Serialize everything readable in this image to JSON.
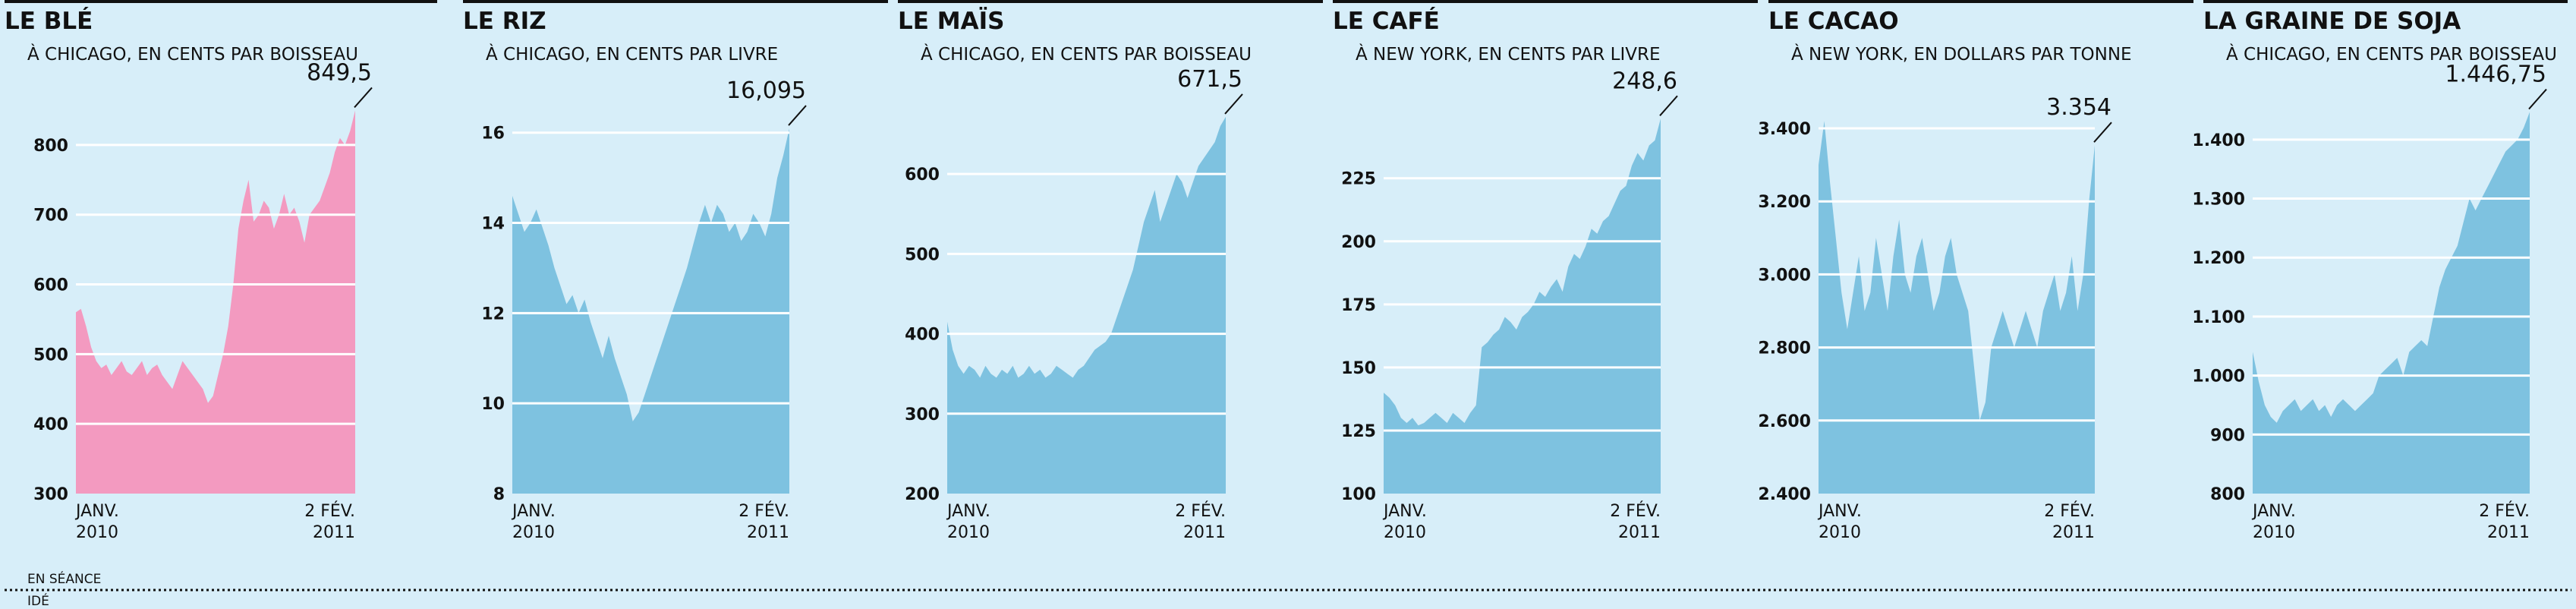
{
  "colors": {
    "background": "#d7eef9",
    "pink": "#f39ac0",
    "blue": "#7ec2e0",
    "grid": "#ffffff",
    "text": "#111111"
  },
  "footer": {
    "label1": "EN SÉANCE",
    "label2": "IDÉ"
  },
  "chart_data": [
    {
      "type": "area",
      "title": "LE BLÉ",
      "subtitle": "À CHICAGO, EN CENTS PAR BOISSEAU",
      "color": "#f39ac0",
      "ylim": [
        300,
        850
      ],
      "yticks": [
        {
          "v": 300,
          "label": "300"
        },
        {
          "v": 400,
          "label": "400"
        },
        {
          "v": 500,
          "label": "500"
        },
        {
          "v": 600,
          "label": "600"
        },
        {
          "v": 700,
          "label": "700"
        },
        {
          "v": 800,
          "label": "800"
        }
      ],
      "x_start_label": [
        "JANV.",
        "2010"
      ],
      "x_end_label": [
        "2 FÉV.",
        "2011"
      ],
      "last_label": "849,5",
      "values": [
        560,
        565,
        540,
        510,
        490,
        480,
        485,
        470,
        480,
        490,
        475,
        470,
        480,
        490,
        470,
        480,
        485,
        470,
        460,
        450,
        470,
        490,
        480,
        470,
        460,
        450,
        430,
        440,
        470,
        500,
        540,
        600,
        680,
        720,
        750,
        690,
        700,
        720,
        710,
        680,
        700,
        730,
        700,
        710,
        690,
        660,
        700,
        710,
        720,
        740,
        760,
        790,
        810,
        800,
        820,
        849.5
      ]
    },
    {
      "type": "area",
      "title": "LE RIZ",
      "subtitle": "À CHICAGO, EN CENTS PAR LIVRE",
      "color": "#7ec2e0",
      "ylim": [
        8,
        16.5
      ],
      "yticks": [
        {
          "v": 8,
          "label": "8"
        },
        {
          "v": 10,
          "label": "10"
        },
        {
          "v": 12,
          "label": "12"
        },
        {
          "v": 14,
          "label": "14"
        },
        {
          "v": 16,
          "label": "16"
        }
      ],
      "x_start_label": [
        "JANV.",
        "2010"
      ],
      "x_end_label": [
        "2 FÉV.",
        "2011"
      ],
      "last_label": "16,095",
      "values": [
        14.6,
        14.2,
        13.8,
        14.0,
        14.3,
        13.9,
        13.5,
        13.0,
        12.6,
        12.2,
        12.4,
        12.0,
        12.3,
        11.8,
        11.4,
        11.0,
        11.5,
        11.0,
        10.6,
        10.2,
        9.6,
        9.8,
        10.2,
        10.6,
        11.0,
        11.4,
        11.8,
        12.2,
        12.6,
        13.0,
        13.5,
        14.0,
        14.4,
        14.0,
        14.4,
        14.2,
        13.8,
        14.0,
        13.6,
        13.8,
        14.2,
        14.0,
        13.7,
        14.2,
        15.0,
        15.5,
        16.095
      ]
    },
    {
      "type": "area",
      "title": "LE MAÏS",
      "subtitle": "À CHICAGO, EN CENTS PAR BOISSEAU",
      "color": "#7ec2e0",
      "ylim": [
        200,
        680
      ],
      "yticks": [
        {
          "v": 200,
          "label": "200"
        },
        {
          "v": 300,
          "label": "300"
        },
        {
          "v": 400,
          "label": "400"
        },
        {
          "v": 500,
          "label": "500"
        },
        {
          "v": 600,
          "label": "600"
        }
      ],
      "x_start_label": [
        "JANV.",
        "2010"
      ],
      "x_end_label": [
        "2 FÉV.",
        "2011"
      ],
      "last_label": "671,5",
      "values": [
        415,
        380,
        360,
        350,
        360,
        355,
        345,
        360,
        350,
        345,
        355,
        350,
        360,
        345,
        350,
        360,
        350,
        355,
        345,
        350,
        360,
        355,
        350,
        345,
        355,
        360,
        370,
        380,
        385,
        390,
        400,
        420,
        440,
        460,
        480,
        510,
        540,
        560,
        580,
        540,
        560,
        580,
        600,
        590,
        570,
        590,
        610,
        620,
        630,
        640,
        660,
        671.5
      ]
    },
    {
      "type": "area",
      "title": "LE CAFÉ",
      "subtitle": "À NEW YORK, EN CENTS PAR LIVRE",
      "color": "#7ec2e0",
      "ylim": [
        100,
        252
      ],
      "yticks": [
        {
          "v": 100,
          "label": "100"
        },
        {
          "v": 125,
          "label": "125"
        },
        {
          "v": 150,
          "label": "150"
        },
        {
          "v": 175,
          "label": "175"
        },
        {
          "v": 200,
          "label": "200"
        },
        {
          "v": 225,
          "label": "225"
        }
      ],
      "x_start_label": [
        "JANV.",
        "2010"
      ],
      "x_end_label": [
        "2 FÉV.",
        "2011"
      ],
      "last_label": "248,6",
      "values": [
        140,
        138,
        135,
        130,
        128,
        130,
        127,
        128,
        130,
        132,
        130,
        128,
        132,
        130,
        128,
        132,
        135,
        158,
        160,
        163,
        165,
        170,
        168,
        165,
        170,
        172,
        175,
        180,
        178,
        182,
        185,
        180,
        190,
        195,
        193,
        198,
        205,
        203,
        208,
        210,
        215,
        220,
        222,
        230,
        235,
        232,
        238,
        240,
        248.6
      ]
    },
    {
      "type": "area",
      "title": "LE CACAO",
      "subtitle": "À NEW YORK, EN DOLLARS PAR TONNE",
      "color": "#7ec2e0",
      "ylim": [
        2400,
        3450
      ],
      "yticks": [
        {
          "v": 2400,
          "label": "2.400"
        },
        {
          "v": 2600,
          "label": "2.600"
        },
        {
          "v": 2800,
          "label": "2.800"
        },
        {
          "v": 3000,
          "label": "3.000"
        },
        {
          "v": 3200,
          "label": "3.200"
        },
        {
          "v": 3400,
          "label": "3.400"
        }
      ],
      "x_start_label": [
        "JANV.",
        "2010"
      ],
      "x_end_label": [
        "2 FÉV.",
        "2011"
      ],
      "last_label": "3.354",
      "values": [
        3300,
        3420,
        3250,
        3100,
        2950,
        2850,
        2950,
        3050,
        2900,
        2950,
        3100,
        3000,
        2900,
        3050,
        3150,
        3000,
        2950,
        3050,
        3100,
        3000,
        2900,
        2950,
        3050,
        3100,
        3000,
        2950,
        2900,
        2750,
        2600,
        2650,
        2800,
        2850,
        2900,
        2850,
        2800,
        2850,
        2900,
        2850,
        2800,
        2900,
        2950,
        3000,
        2900,
        2950,
        3050,
        2900,
        3000,
        3200,
        3354
      ]
    },
    {
      "type": "area",
      "title": "LA GRAINE DE SOJA",
      "subtitle": "À CHICAGO, EN CENTS PAR BOISSEAU",
      "color": "#7ec2e0",
      "ylim": [
        800,
        1450
      ],
      "yticks": [
        {
          "v": 800,
          "label": "800"
        },
        {
          "v": 900,
          "label": "900"
        },
        {
          "v": 1000,
          "label": "1.000"
        },
        {
          "v": 1100,
          "label": "1.100"
        },
        {
          "v": 1200,
          "label": "1.200"
        },
        {
          "v": 1300,
          "label": "1.300"
        },
        {
          "v": 1400,
          "label": "1.400"
        }
      ],
      "x_start_label": [
        "JANV.",
        "2010"
      ],
      "x_end_label": [
        "2 FÉV.",
        "2011"
      ],
      "last_label": "1.446,75",
      "values": [
        1040,
        990,
        950,
        930,
        920,
        940,
        950,
        960,
        940,
        950,
        960,
        940,
        950,
        930,
        950,
        960,
        950,
        940,
        950,
        960,
        970,
        1000,
        1010,
        1020,
        1030,
        1000,
        1040,
        1050,
        1060,
        1050,
        1100,
        1150,
        1180,
        1200,
        1220,
        1260,
        1300,
        1280,
        1300,
        1320,
        1340,
        1360,
        1380,
        1390,
        1400,
        1420,
        1446.75
      ]
    }
  ]
}
